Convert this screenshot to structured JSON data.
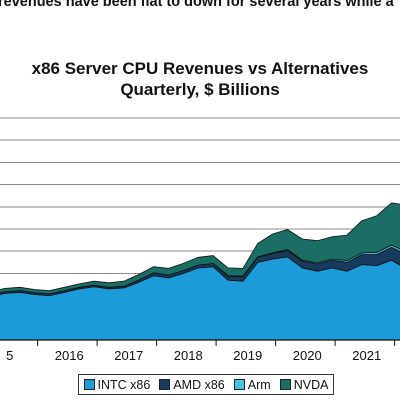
{
  "banner": "revenues have been flat to down for several years while a",
  "chart_data": {
    "type": "area",
    "stacked": true,
    "title": "x86 Server CPU Revenues vs Alternatives",
    "subtitle": "Quarterly, $ Billions",
    "xlabel": "",
    "ylabel": "",
    "grid": true,
    "legend_position": "bottom",
    "x_tick_labels": [
      "5",
      "2016",
      "2017",
      "2018",
      "2019",
      "2020",
      "2021",
      "20"
    ],
    "x": [
      2015.0,
      2015.25,
      2015.5,
      2015.75,
      2016.0,
      2016.25,
      2016.5,
      2016.75,
      2017.0,
      2017.25,
      2017.5,
      2017.75,
      2018.0,
      2018.25,
      2018.5,
      2018.75,
      2019.0,
      2019.25,
      2019.5,
      2019.75,
      2020.0,
      2020.25,
      2020.5,
      2020.75,
      2021.0,
      2021.25,
      2021.5,
      2021.75,
      2022.0,
      2022.25
    ],
    "series": [
      {
        "name": "INTC x86",
        "color": "#1d9bd8",
        "values": [
          3.9,
          4.2,
          4.3,
          4.1,
          4.0,
          4.3,
          4.6,
          4.8,
          4.6,
          4.7,
          5.2,
          5.8,
          5.6,
          6.0,
          6.5,
          6.6,
          5.4,
          5.3,
          7.0,
          7.3,
          7.5,
          6.5,
          6.2,
          6.5,
          6.2,
          6.8,
          6.7,
          7.2,
          6.4,
          6.0
        ]
      },
      {
        "name": "AMD x86",
        "color": "#173a5e",
        "values": [
          0.15,
          0.15,
          0.15,
          0.15,
          0.15,
          0.15,
          0.15,
          0.15,
          0.15,
          0.15,
          0.2,
          0.25,
          0.25,
          0.25,
          0.25,
          0.3,
          0.35,
          0.4,
          0.45,
          0.5,
          0.55,
          0.6,
          0.65,
          0.7,
          0.8,
          0.9,
          1.0,
          1.15,
          1.3,
          1.4
        ]
      },
      {
        "name": "Arm",
        "color": "#41c7e0",
        "values": [
          0,
          0,
          0,
          0,
          0,
          0,
          0,
          0,
          0,
          0,
          0,
          0,
          0,
          0,
          0,
          0,
          0.05,
          0.05,
          0.05,
          0.05,
          0.1,
          0.1,
          0.1,
          0.1,
          0.15,
          0.15,
          0.2,
          0.2,
          0.25,
          0.25
        ]
      },
      {
        "name": "NVDA",
        "color": "#1a6e64",
        "values": [
          0.3,
          0.3,
          0.3,
          0.3,
          0.3,
          0.3,
          0.3,
          0.35,
          0.4,
          0.45,
          0.5,
          0.55,
          0.6,
          0.65,
          0.7,
          0.7,
          0.7,
          0.7,
          1.2,
          1.7,
          1.8,
          1.9,
          2.0,
          2.0,
          2.3,
          2.9,
          3.3,
          3.8,
          4.2,
          4.5
        ]
      }
    ]
  }
}
